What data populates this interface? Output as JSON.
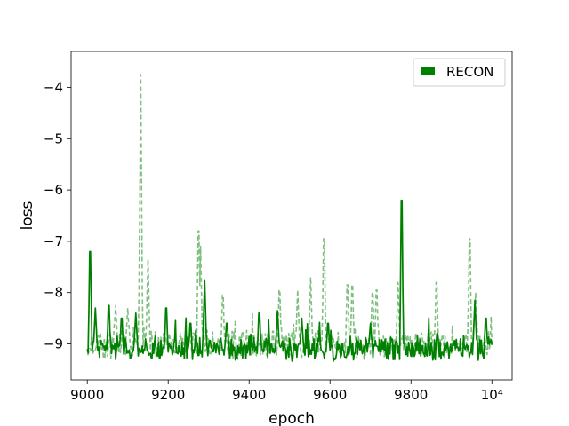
{
  "chart_data": {
    "type": "line",
    "title": "",
    "xlabel": "epoch",
    "ylabel": "loss",
    "xlim": [
      8960,
      10050
    ],
    "ylim": [
      -9.7,
      -3.3
    ],
    "x_ticks": [
      9000,
      9200,
      9400,
      9600,
      9800,
      10000
    ],
    "x_tick_labels": [
      "9000",
      "9200",
      "9400",
      "9600",
      "9800",
      "10⁴"
    ],
    "y_ticks": [
      -4,
      -5,
      -6,
      -7,
      -8,
      -9
    ],
    "y_tick_labels": [
      "−4",
      "−5",
      "−6",
      "−7",
      "−8",
      "−9"
    ],
    "grid": false,
    "legend": {
      "position": "top-right",
      "entries": [
        "RECON"
      ]
    },
    "colors": {
      "main": "#008000",
      "faded": "#7fbf7f"
    },
    "series": [
      {
        "name": "RECON",
        "style": "solid",
        "color": "#008000",
        "baseline": -9.1,
        "noise": 0.18,
        "spikes": [
          {
            "x": 9007,
            "y": -7.2
          },
          {
            "x": 9020,
            "y": -8.3
          },
          {
            "x": 9053,
            "y": -8.25
          },
          {
            "x": 9085,
            "y": -8.5
          },
          {
            "x": 9120,
            "y": -8.4
          },
          {
            "x": 9195,
            "y": -8.3
          },
          {
            "x": 9255,
            "y": -8.6
          },
          {
            "x": 9290,
            "y": -7.75
          },
          {
            "x": 9345,
            "y": -8.6
          },
          {
            "x": 9425,
            "y": -8.4
          },
          {
            "x": 9470,
            "y": -8.35
          },
          {
            "x": 9530,
            "y": -8.5
          },
          {
            "x": 9595,
            "y": -8.6
          },
          {
            "x": 9700,
            "y": -8.6
          },
          {
            "x": 9777,
            "y": -6.2
          },
          {
            "x": 9865,
            "y": -8.8
          },
          {
            "x": 9958,
            "y": -8.15
          },
          {
            "x": 9985,
            "y": -8.5
          }
        ]
      },
      {
        "name": "",
        "style": "dashed",
        "color": "#7fbf7f",
        "baseline": -9.0,
        "noise": 0.22,
        "spikes": [
          {
            "x": 9070,
            "y": -8.25
          },
          {
            "x": 9100,
            "y": -8.3
          },
          {
            "x": 9132,
            "y": -3.75
          },
          {
            "x": 9150,
            "y": -7.35
          },
          {
            "x": 9275,
            "y": -6.8
          },
          {
            "x": 9280,
            "y": -7.1
          },
          {
            "x": 9335,
            "y": -8.05
          },
          {
            "x": 9475,
            "y": -7.95
          },
          {
            "x": 9520,
            "y": -7.95
          },
          {
            "x": 9552,
            "y": -7.7
          },
          {
            "x": 9585,
            "y": -6.95
          },
          {
            "x": 9643,
            "y": -7.85
          },
          {
            "x": 9655,
            "y": -7.85
          },
          {
            "x": 9705,
            "y": -8.0
          },
          {
            "x": 9715,
            "y": -7.95
          },
          {
            "x": 9768,
            "y": -7.8
          },
          {
            "x": 9863,
            "y": -7.8
          },
          {
            "x": 9945,
            "y": -6.95
          },
          {
            "x": 9960,
            "y": -8.0
          }
        ]
      }
    ]
  }
}
